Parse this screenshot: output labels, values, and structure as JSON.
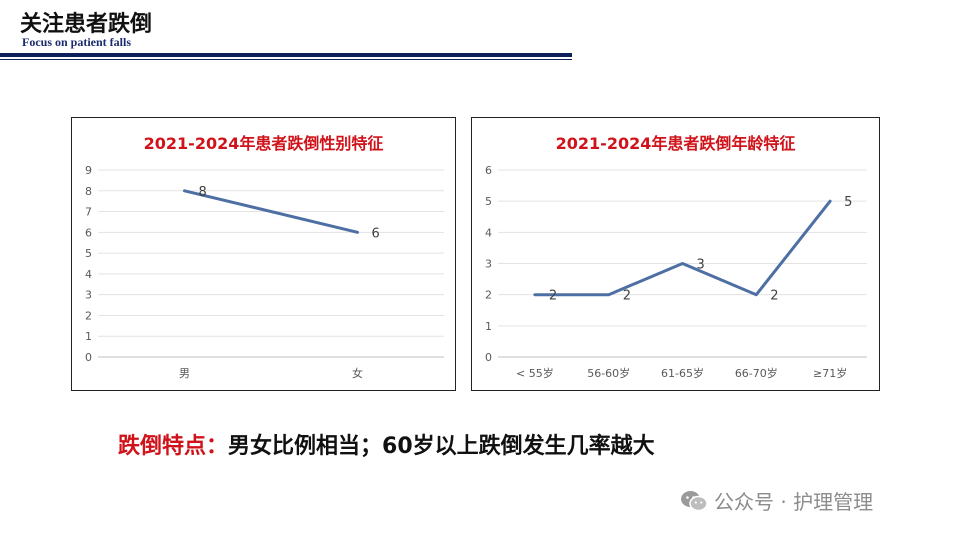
{
  "header": {
    "title": "关注患者跌倒",
    "subtitle": "Focus on patient falls"
  },
  "chart_data": [
    {
      "type": "line",
      "title": "2021-2024年患者跌倒性别特征",
      "categories": [
        "男",
        "女"
      ],
      "series": [
        {
          "values": [
            8,
            6
          ]
        }
      ],
      "ylim": [
        0,
        9
      ],
      "yticks": [
        "0",
        "1",
        "2",
        "3",
        "4",
        "5",
        "6",
        "7",
        "8",
        "9"
      ],
      "grid": true,
      "color": "#4e6fa3"
    },
    {
      "type": "line",
      "title": "2021-2024年患者跌倒年龄特征",
      "categories": [
        "< 55岁",
        "56-60岁",
        "61-65岁",
        "66-70岁",
        "≥71岁"
      ],
      "series": [
        {
          "values": [
            2,
            2,
            3,
            2,
            5
          ]
        }
      ],
      "ylim": [
        0,
        6
      ],
      "yticks": [
        "0",
        "1",
        "2",
        "3",
        "4",
        "5",
        "6"
      ],
      "grid": true,
      "color": "#4e6fa3"
    }
  ],
  "summary": {
    "label": "跌倒特点：",
    "text": "男女比例相当；60岁以上跌倒发生几率越大"
  },
  "watermark": {
    "text": "公众号 · 护理管理",
    "icon": "wechat-icon"
  },
  "colors": {
    "accent_red": "#d0131a",
    "navy": "#0f1f5c",
    "line": "#4e6fa3"
  }
}
